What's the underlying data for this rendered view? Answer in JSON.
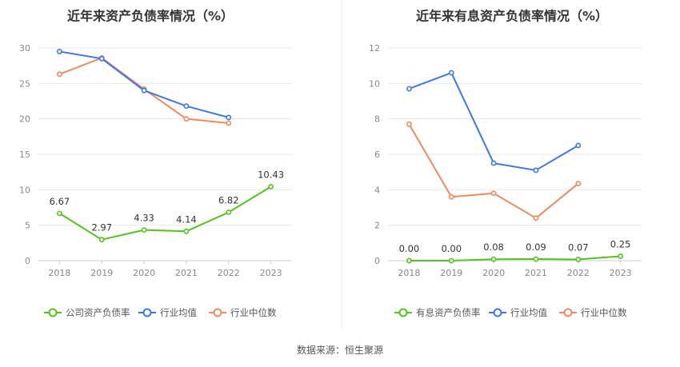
{
  "source_text": "数据来源：恒生聚源",
  "colors": {
    "company": "#52c41a",
    "avg": "#3b78e7",
    "median": "#f08a5d",
    "grid": "#e8e8e8",
    "axis": "#cccccc"
  },
  "chart_data": [
    {
      "type": "line",
      "title": "近年来资产负债率情况（%）",
      "categories": [
        "2018",
        "2019",
        "2020",
        "2021",
        "2022",
        "2023"
      ],
      "ylim": [
        0,
        30
      ],
      "yticks": [
        0,
        5,
        10,
        15,
        20,
        25,
        30
      ],
      "grid": true,
      "legend_position": "bottom",
      "series": [
        {
          "name": "公司资产负债率",
          "key": "company",
          "values": [
            6.67,
            2.97,
            4.33,
            4.14,
            6.82,
            10.43
          ],
          "labels": [
            "6.67",
            "2.97",
            "4.33",
            "4.14",
            "6.82",
            "10.43"
          ]
        },
        {
          "name": "行业均值",
          "key": "avg",
          "values": [
            29.5,
            28.5,
            24.0,
            21.8,
            20.2,
            null
          ]
        },
        {
          "name": "行业中位数",
          "key": "median",
          "values": [
            26.3,
            28.6,
            24.2,
            20.0,
            19.4,
            null
          ]
        }
      ]
    },
    {
      "type": "line",
      "title": "近年来有息资产负债率情况（%）",
      "categories": [
        "2018",
        "2019",
        "2020",
        "2021",
        "2022",
        "2023"
      ],
      "ylim": [
        0,
        12
      ],
      "yticks": [
        0,
        2,
        4,
        6,
        8,
        10,
        12
      ],
      "grid": true,
      "legend_position": "bottom",
      "series": [
        {
          "name": "有息资产负债率",
          "key": "company",
          "values": [
            0.0,
            0.0,
            0.08,
            0.09,
            0.07,
            0.25
          ],
          "labels": [
            "0.00",
            "0.00",
            "0.08",
            "0.09",
            "0.07",
            "0.25"
          ]
        },
        {
          "name": "行业均值",
          "key": "avg",
          "values": [
            9.7,
            10.6,
            5.5,
            5.1,
            6.5,
            null
          ]
        },
        {
          "name": "行业中位数",
          "key": "median",
          "values": [
            7.7,
            3.6,
            3.8,
            2.4,
            4.35,
            null
          ]
        }
      ]
    }
  ]
}
